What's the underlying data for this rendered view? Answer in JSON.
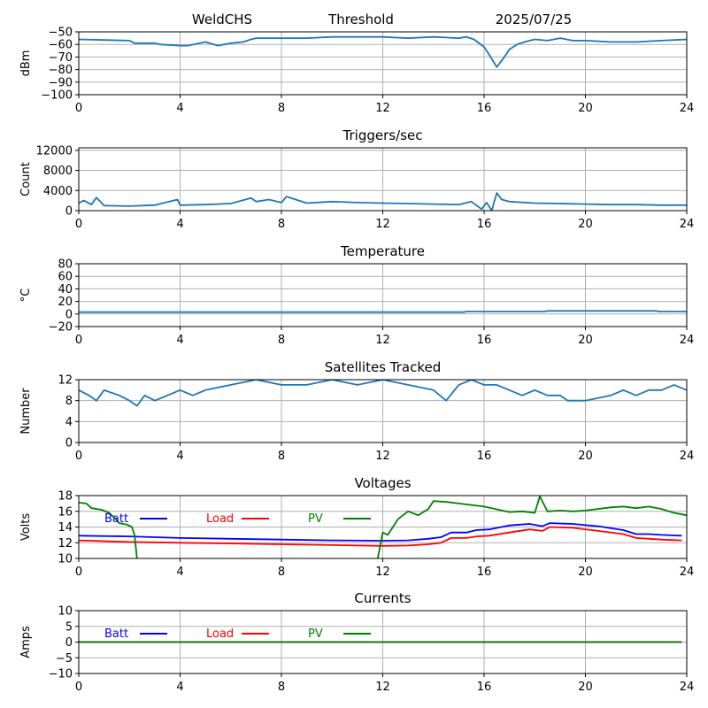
{
  "header": {
    "site": "WeldCHS",
    "mode": "Threshold",
    "date": "2025/07/25"
  },
  "colors": {
    "series": "#1f77b4",
    "batt": "#0000ff",
    "load": "#ff0000",
    "pv": "#008000",
    "grid": "#b0b0b0"
  },
  "chart_data": [
    {
      "type": "line",
      "title": "",
      "ylabel": "dBm",
      "xlim": [
        0,
        24
      ],
      "ylim": [
        -100,
        -50
      ],
      "xticks": [
        0,
        4,
        8,
        12,
        16,
        20,
        24
      ],
      "yticks": [
        -100,
        -90,
        -80,
        -70,
        -60,
        -50
      ],
      "grid": true,
      "series": [
        {
          "name": "",
          "color": "#1f77b4",
          "x": [
            0,
            1,
            2,
            2.2,
            3,
            3.2,
            4,
            4.3,
            5,
            5.5,
            6,
            6.5,
            6.8,
            7,
            8,
            9,
            10,
            11,
            12,
            13,
            14,
            15,
            15.3,
            15.6,
            16,
            16.2,
            16.5,
            16.8,
            17,
            17.3,
            17.6,
            18,
            18.5,
            19,
            19.5,
            20,
            21,
            22,
            23,
            24
          ],
          "y": [
            -56,
            -56.5,
            -57,
            -59,
            -59,
            -60,
            -61,
            -61,
            -58,
            -61,
            -59,
            -58,
            -56,
            -55,
            -55,
            -55,
            -54,
            -54,
            -54,
            -55,
            -54,
            -55,
            -54,
            -56,
            -62,
            -68,
            -78,
            -70,
            -64,
            -60,
            -58,
            -56,
            -57,
            -55,
            -57,
            -57,
            -58,
            -58,
            -57,
            -56
          ]
        }
      ]
    },
    {
      "type": "line",
      "title": "Triggers/sec",
      "ylabel": "Count",
      "xlim": [
        0,
        24
      ],
      "ylim": [
        0,
        12500
      ],
      "xticks": [
        0,
        4,
        8,
        12,
        16,
        20,
        24
      ],
      "yticks": [
        0,
        4000,
        8000,
        12000
      ],
      "grid": true,
      "series": [
        {
          "name": "",
          "color": "#1f77b4",
          "x": [
            0,
            0.2,
            0.5,
            0.7,
            1,
            2,
            3,
            3.9,
            4,
            5,
            6,
            6.8,
            7,
            7.5,
            8,
            8.2,
            9,
            10,
            11,
            12,
            13,
            14,
            15,
            15.5,
            15.9,
            16.1,
            16.3,
            16.5,
            16.7,
            17,
            18,
            19,
            20,
            21,
            22,
            23,
            24
          ],
          "y": [
            1500,
            2000,
            1200,
            2600,
            1000,
            900,
            1100,
            2200,
            1100,
            1200,
            1400,
            2500,
            1800,
            2200,
            1600,
            2800,
            1500,
            1800,
            1600,
            1500,
            1400,
            1300,
            1200,
            1800,
            300,
            1600,
            0,
            3500,
            2200,
            1800,
            1500,
            1400,
            1300,
            1200,
            1200,
            1100,
            1100
          ]
        }
      ]
    },
    {
      "type": "line",
      "title": "Temperature",
      "ylabel": "°C",
      "xlim": [
        0,
        24
      ],
      "ylim": [
        -20,
        80
      ],
      "xticks": [
        0,
        4,
        8,
        12,
        16,
        20,
        24
      ],
      "yticks": [
        -20,
        0,
        20,
        40,
        60,
        80
      ],
      "grid": true,
      "series": [
        {
          "name": "",
          "color": "#1f77b4",
          "x": [
            0,
            15.2,
            15.3,
            18.4,
            18.5,
            22.8,
            22.9,
            24
          ],
          "y": [
            3,
            3,
            4,
            4,
            5,
            5,
            4,
            4
          ]
        }
      ]
    },
    {
      "type": "line",
      "title": "Satellites Tracked",
      "ylabel": "Number",
      "xlim": [
        0,
        24
      ],
      "ylim": [
        0,
        12
      ],
      "xticks": [
        0,
        4,
        8,
        12,
        16,
        20,
        24
      ],
      "yticks": [
        0,
        4,
        8,
        12
      ],
      "grid": true,
      "series": [
        {
          "name": "",
          "color": "#1f77b4",
          "x": [
            0,
            0.4,
            0.7,
            1,
            1.6,
            2,
            2.3,
            2.6,
            3,
            3.5,
            4,
            4.5,
            5,
            6,
            7,
            8,
            9,
            10,
            11,
            12,
            13,
            14,
            14.5,
            15,
            15.5,
            16,
            16.5,
            17,
            17.5,
            18,
            18.5,
            19,
            19.3,
            20,
            21,
            21.5,
            22,
            22.5,
            23,
            23.5,
            24
          ],
          "y": [
            10,
            9,
            8,
            10,
            9,
            8,
            7,
            9,
            8,
            9,
            10,
            9,
            10,
            11,
            12,
            11,
            11,
            12,
            11,
            12,
            11,
            10,
            8,
            11,
            12,
            11,
            11,
            10,
            9,
            10,
            9,
            9,
            8,
            8,
            9,
            10,
            9,
            10,
            10,
            11,
            10
          ]
        }
      ]
    },
    {
      "type": "line",
      "title": "Voltages",
      "ylabel": "Volts",
      "xlim": [
        0,
        24
      ],
      "ylim": [
        10,
        18
      ],
      "xticks": [
        0,
        4,
        8,
        12,
        16,
        20,
        24
      ],
      "yticks": [
        10,
        12,
        14,
        16,
        18
      ],
      "grid": true,
      "series": [
        {
          "name": "Batt",
          "color": "#0000ff",
          "x": [
            0,
            2,
            4,
            6,
            8,
            10,
            12,
            13,
            13.8,
            14.3,
            14.7,
            15.3,
            15.7,
            16.2,
            17,
            17.8,
            18.3,
            18.6,
            19.5,
            20.5,
            21.5,
            22,
            22.5,
            23,
            23.8
          ],
          "y": [
            12.9,
            12.8,
            12.6,
            12.5,
            12.4,
            12.3,
            12.25,
            12.3,
            12.5,
            12.7,
            13.3,
            13.3,
            13.6,
            13.7,
            14.2,
            14.4,
            14.1,
            14.5,
            14.4,
            14.1,
            13.6,
            13.1,
            13.1,
            13.0,
            12.9
          ]
        },
        {
          "name": "Load",
          "color": "#ff0000",
          "x": [
            0,
            2,
            4,
            6,
            8,
            10,
            12,
            13,
            13.8,
            14.3,
            14.7,
            15.3,
            15.7,
            16.2,
            17,
            17.8,
            18.3,
            18.6,
            19.5,
            20.5,
            21.5,
            22,
            22.5,
            23,
            23.8
          ],
          "y": [
            12.3,
            12.1,
            12.0,
            11.9,
            11.8,
            11.7,
            11.6,
            11.65,
            11.8,
            12.0,
            12.6,
            12.6,
            12.8,
            12.9,
            13.3,
            13.7,
            13.5,
            14.0,
            13.9,
            13.5,
            13.1,
            12.6,
            12.5,
            12.4,
            12.3
          ]
        },
        {
          "name": "PV",
          "color": "#008000",
          "x": [
            0,
            0.3,
            0.5,
            0.9,
            1.2,
            1.4,
            1.6,
            1.9,
            2.1,
            2.2,
            2.3,
            null,
            11.8,
            12,
            12.2,
            12.6,
            13,
            13.4,
            13.8,
            14,
            14.5,
            15,
            15.5,
            16,
            17,
            17.5,
            18,
            18.2,
            18.5,
            19,
            19.5,
            20,
            21,
            21.5,
            22,
            22.5,
            23,
            23.5,
            24
          ],
          "y": [
            17.1,
            17.0,
            16.4,
            16.2,
            15.8,
            15.2,
            14.5,
            14.3,
            14.0,
            13.0,
            10.0,
            null,
            10.0,
            13.3,
            13.0,
            15.0,
            16.0,
            15.5,
            16.3,
            17.3,
            17.2,
            17.0,
            16.8,
            16.6,
            15.9,
            16.0,
            15.8,
            17.9,
            16.0,
            16.1,
            16.0,
            16.1,
            16.5,
            16.6,
            16.4,
            16.6,
            16.3,
            15.8,
            15.5
          ]
        }
      ],
      "legend": "top-left"
    },
    {
      "type": "line",
      "title": "Currents",
      "ylabel": "Amps",
      "xlim": [
        0,
        24
      ],
      "ylim": [
        -10,
        10
      ],
      "xticks": [
        0,
        4,
        8,
        12,
        16,
        20,
        24
      ],
      "yticks": [
        -10,
        -5,
        0,
        5,
        10
      ],
      "grid": true,
      "series": [
        {
          "name": "Batt",
          "color": "#0000ff",
          "x": [
            0,
            23.8
          ],
          "y": [
            0,
            0
          ]
        },
        {
          "name": "Load",
          "color": "#ff0000",
          "x": [
            0,
            23.8
          ],
          "y": [
            0,
            0
          ]
        },
        {
          "name": "PV",
          "color": "#008000",
          "x": [
            0,
            23.8
          ],
          "y": [
            0,
            0
          ]
        }
      ],
      "legend": "top-left"
    }
  ]
}
